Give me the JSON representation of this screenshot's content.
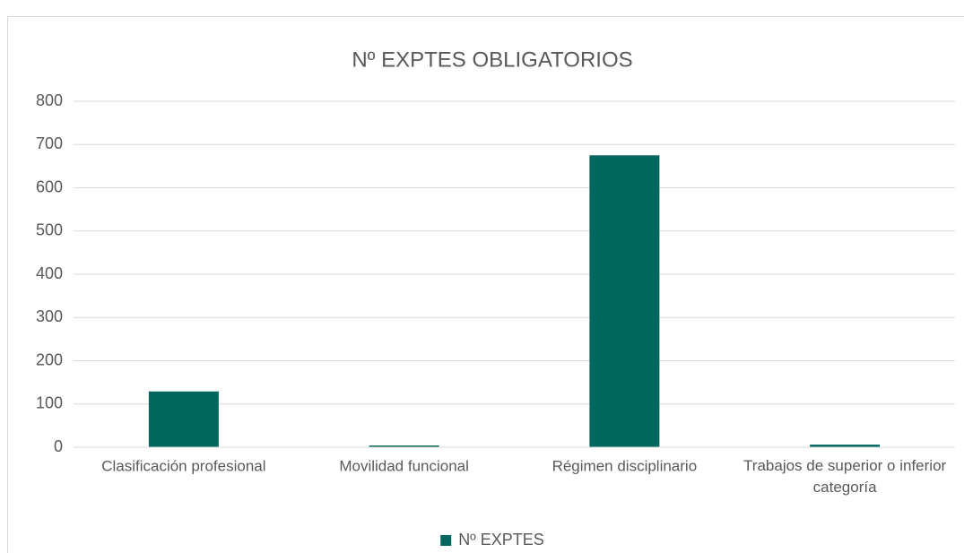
{
  "chart_data": {
    "type": "bar",
    "title": "Nº EXPTES OBLIGATORIOS",
    "categories": [
      "Clasificación profesional",
      "Movilidad funcional",
      "Régimen disciplinario",
      "Trabajos de superior o inferior categoría"
    ],
    "series": [
      {
        "name": "Nº EXPTES",
        "color": "#00675f",
        "values": [
          129,
          4,
          675,
          6
        ]
      }
    ],
    "ylim": [
      0,
      800
    ],
    "yticks": [
      0,
      100,
      200,
      300,
      400,
      500,
      600,
      700,
      800
    ],
    "grid": true,
    "legend": "bottom"
  }
}
